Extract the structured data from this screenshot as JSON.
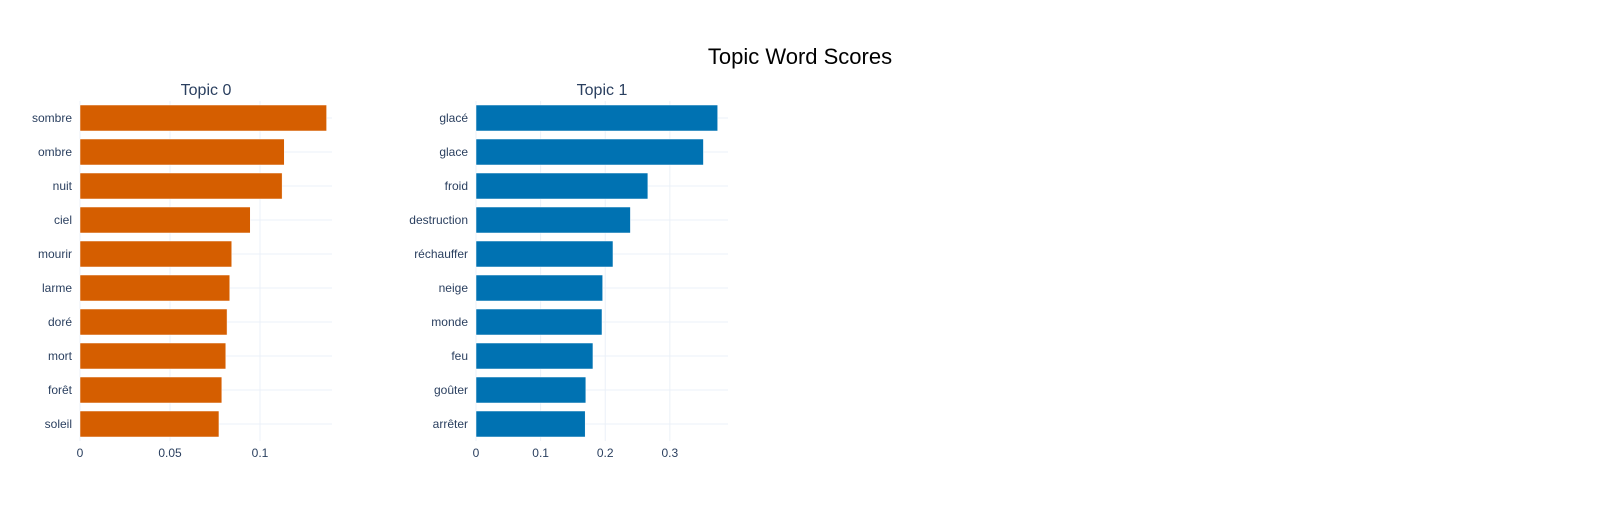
{
  "chart_data": {
    "type": "bar",
    "orientation": "horizontal",
    "title": "Topic Word Scores",
    "grid": true,
    "panels": [
      {
        "title": "Topic 0",
        "color": "#D55E00",
        "xlim": [
          0,
          0.14
        ],
        "xticks": [
          {
            "value": 0,
            "label": "0"
          },
          {
            "value": 0.05,
            "label": "0.05"
          },
          {
            "value": 0.1,
            "label": "0.1"
          }
        ],
        "categories": [
          "sombre",
          "ombre",
          "nuit",
          "ciel",
          "mourir",
          "larme",
          "doré",
          "mort",
          "forêt",
          "soleil"
        ],
        "values": [
          0.137,
          0.1135,
          0.1123,
          0.0946,
          0.0843,
          0.0832,
          0.0817,
          0.081,
          0.0788,
          0.0772
        ]
      },
      {
        "title": "Topic 1",
        "color": "#0072B2",
        "xlim": [
          0,
          0.39
        ],
        "xticks": [
          {
            "value": 0,
            "label": "0"
          },
          {
            "value": 0.1,
            "label": "0.1"
          },
          {
            "value": 0.2,
            "label": "0.2"
          },
          {
            "value": 0.3,
            "label": "0.3"
          }
        ],
        "categories": [
          "glacé",
          "glace",
          "froid",
          "destruction",
          "réchauffer",
          "neige",
          "monde",
          "feu",
          "goûter",
          "arrêter"
        ],
        "values": [
          0.374,
          0.352,
          0.266,
          0.239,
          0.212,
          0.196,
          0.195,
          0.181,
          0.17,
          0.169
        ]
      }
    ]
  }
}
